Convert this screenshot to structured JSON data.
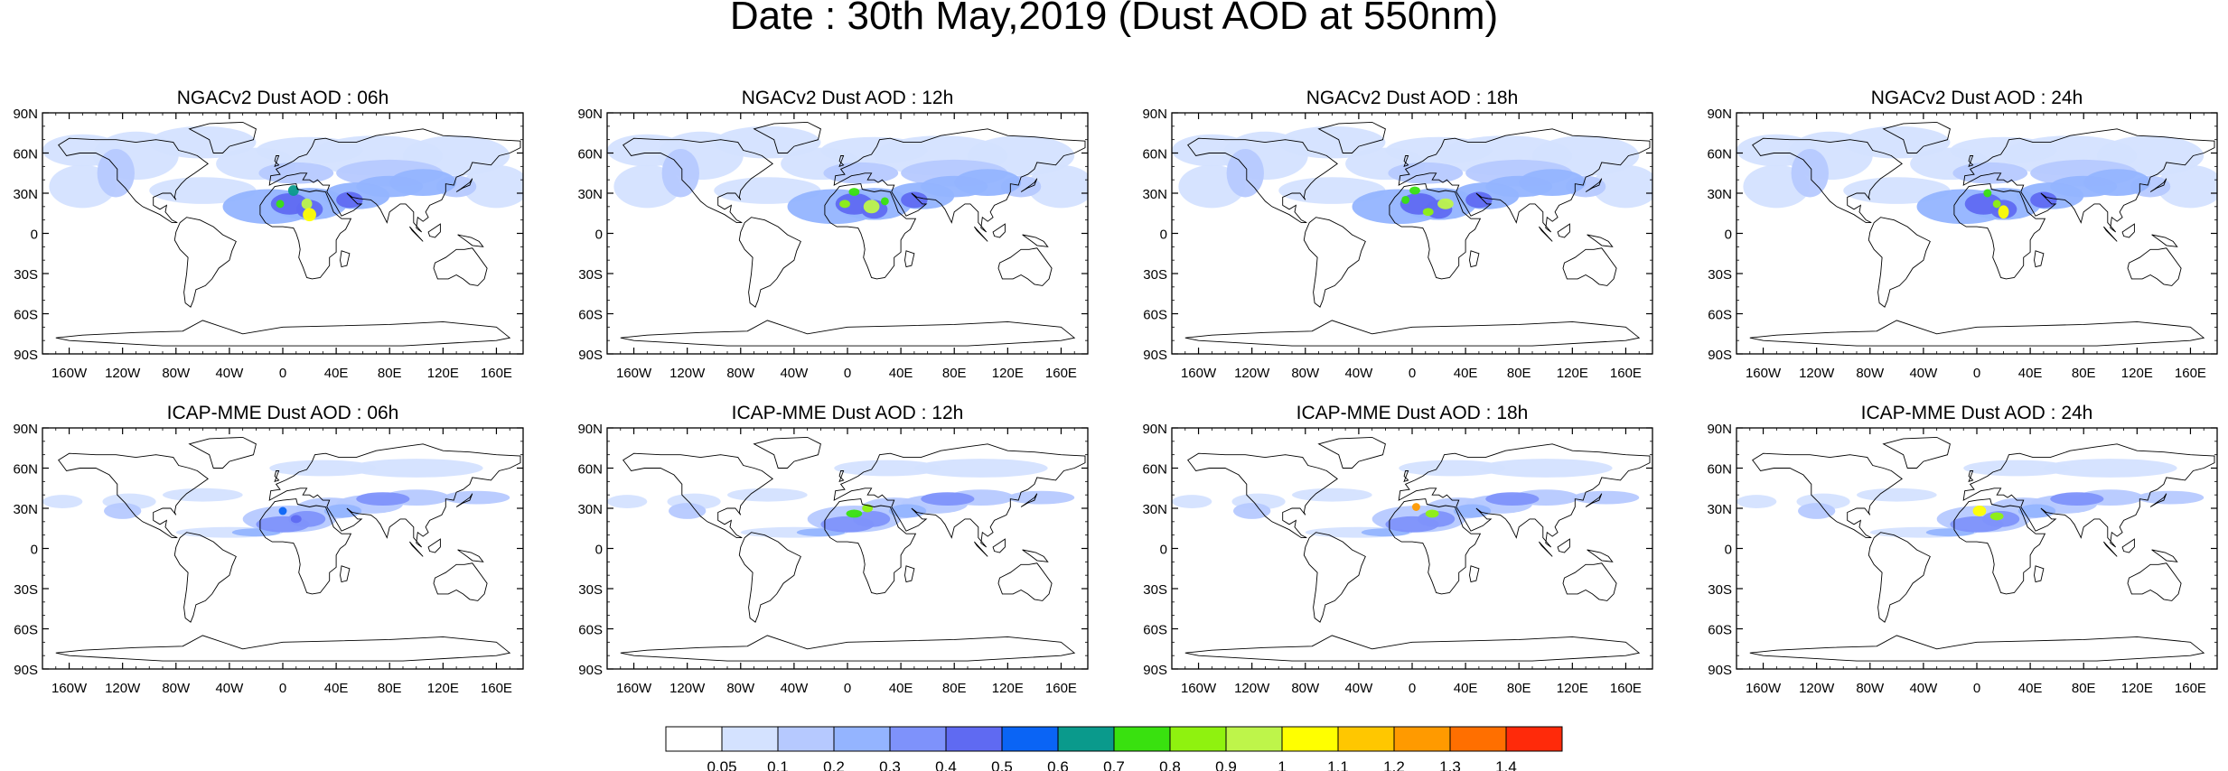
{
  "title": "Date : 30th May,2019 (Dust AOD at 550nm)",
  "panels": [
    {
      "title": "NGACv2 Dust AOD : 06h",
      "model": "NGACv2",
      "hour": 6
    },
    {
      "title": "NGACv2 Dust AOD : 12h",
      "model": "NGACv2",
      "hour": 12
    },
    {
      "title": "NGACv2 Dust AOD : 18h",
      "model": "NGACv2",
      "hour": 18
    },
    {
      "title": "NGACv2 Dust AOD : 24h",
      "model": "NGACv2",
      "hour": 24
    },
    {
      "title": "ICAP-MME Dust AOD : 06h",
      "model": "ICAP-MME",
      "hour": 6
    },
    {
      "title": "ICAP-MME Dust AOD : 12h",
      "model": "ICAP-MME",
      "hour": 12
    },
    {
      "title": "ICAP-MME Dust AOD : 18h",
      "model": "ICAP-MME",
      "hour": 18
    },
    {
      "title": "ICAP-MME Dust AOD : 24h",
      "model": "ICAP-MME",
      "hour": 24
    }
  ],
  "lat_tick_labels": [
    "90N",
    "60N",
    "30N",
    "0",
    "30S",
    "60S",
    "90S"
  ],
  "lon_tick_labels": [
    "160W",
    "120W",
    "80W",
    "40W",
    "0",
    "40E",
    "80E",
    "120E",
    "160E"
  ],
  "colorbar": {
    "levels": [
      "0.05",
      "0.1",
      "0.2",
      "0.3",
      "0.4",
      "0.5",
      "0.6",
      "0.7",
      "0.8",
      "0.9",
      "1",
      "1.1",
      "1.2",
      "1.3",
      "1.4"
    ],
    "colors": [
      "#ffffff",
      "#d4e2ff",
      "#b6c9ff",
      "#94b4ff",
      "#7e92fb",
      "#5f6af2",
      "#0a64f5",
      "#0a9a8c",
      "#39e10f",
      "#8ff20f",
      "#bef54a",
      "#ffff00",
      "#ffc700",
      "#ff9a00",
      "#ff6f00",
      "#ff2a0a"
    ]
  },
  "map_style": {
    "ocean": "#ffffff",
    "coastline": "#000000",
    "dust_light": "#d4e2ff",
    "dust_mid": "#b6c9ff",
    "dust_heavy": "#5f6af2"
  }
}
